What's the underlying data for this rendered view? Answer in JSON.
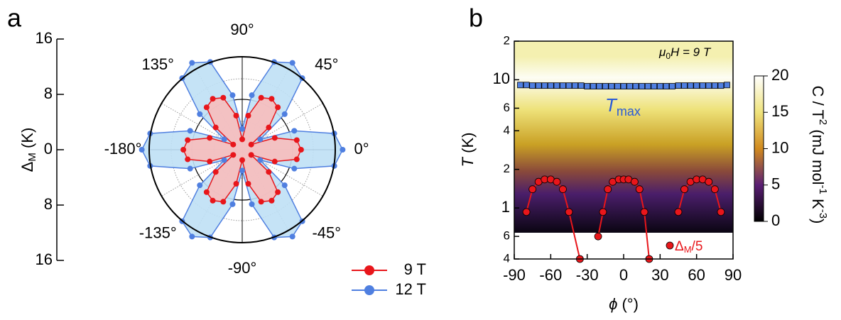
{
  "panel_labels": [
    "a",
    "b"
  ],
  "chart_data": [
    {
      "type": "polar",
      "ylabel": [
        "Δ",
        "M",
        " (K)"
      ],
      "ylim": [
        -16,
        16
      ],
      "yticks": [
        16,
        8,
        0,
        {
          "value": -8,
          "label": "8"
        },
        {
          "value": -16,
          "label": "16"
        }
      ],
      "thetaticks": [
        {
          "value": 0,
          "label": "0°"
        },
        {
          "value": 45,
          "label": "45°"
        },
        {
          "value": 90,
          "label": "90°"
        },
        {
          "value": 135,
          "label": "135°"
        },
        {
          "value": 180,
          "label": "-180°"
        },
        {
          "value": 225,
          "label": "-135°"
        },
        {
          "value": 270,
          "label": "-90°"
        },
        {
          "value": 315,
          "label": "-45°"
        }
      ],
      "theta": [
        0,
        10,
        20,
        30,
        40,
        50,
        60,
        70,
        80,
        90,
        100,
        110,
        120,
        130,
        140,
        150,
        160,
        170,
        180,
        190,
        200,
        210,
        220,
        230,
        240,
        250,
        260,
        270,
        280,
        290,
        300,
        310,
        320,
        330,
        340,
        350
      ],
      "series": [
        {
          "name": "12 T",
          "color": "#4f7fe0",
          "fill": "#bfe0f5",
          "values": [
            14.5,
            13.5,
            8,
            3,
            8,
            13.5,
            14.5,
            13.5,
            8,
            3,
            8,
            13.5,
            14.5,
            13.5,
            8,
            3,
            8,
            13.5,
            14.5,
            13.5,
            8,
            3,
            8,
            13.5,
            14.5,
            13.5,
            8,
            3,
            8,
            13.5,
            14.5,
            13.5,
            8,
            3,
            8,
            13.5
          ]
        },
        {
          "name": "9 T",
          "color": "#e8161b",
          "fill": "#f7bcbc",
          "values": [
            8.5,
            8,
            5,
            1.5,
            5,
            8,
            8.5,
            8,
            5,
            1.5,
            5,
            8,
            8.5,
            8,
            5,
            1.5,
            5,
            8,
            8.5,
            8,
            5,
            1.5,
            5,
            8,
            8.5,
            8,
            5,
            1.5,
            5,
            8,
            8.5,
            8,
            5,
            1.5,
            5,
            8
          ]
        }
      ],
      "legend": "lower right"
    },
    {
      "type": "scatter-heatmap",
      "xlabel": [
        "ϕ",
        " (°)"
      ],
      "ylabel": [
        "T",
        " (K)"
      ],
      "xlim": [
        -90,
        90
      ],
      "xticks": [
        -90,
        -60,
        -30,
        0,
        30,
        60,
        90
      ],
      "ylim": [
        0.4,
        20
      ],
      "log_y": true,
      "yticks": [
        {
          "value": 0.4,
          "label": "4"
        },
        {
          "value": 0.6,
          "label": "6"
        },
        1,
        2,
        4,
        6,
        10,
        {
          "value": 20,
          "label": "2"
        }
      ],
      "annotation": [
        "μ",
        "0",
        "H = 9 T"
      ],
      "colorbar": {
        "label": [
          "C / T",
          "2",
          " (mJ  mol",
          "-1",
          " K",
          "-3",
          ")"
        ],
        "clim": [
          0,
          20
        ],
        "ticks": [
          0,
          5,
          10,
          15,
          20
        ]
      },
      "series": [
        {
          "label": [
            "T",
            "max"
          ],
          "color": "#4f7fe0",
          "marker": "square",
          "x": [
            -85,
            -80,
            -75,
            -70,
            -65,
            -60,
            -55,
            -50,
            -45,
            -40,
            -35,
            -30,
            -25,
            -20,
            -15,
            -10,
            -5,
            0,
            5,
            10,
            15,
            20,
            25,
            30,
            35,
            40,
            45,
            50,
            55,
            60,
            65,
            70,
            75,
            80,
            85
          ],
          "values": [
            9.1,
            9.1,
            9.0,
            9.0,
            9.0,
            9.0,
            9.0,
            9.0,
            9.0,
            9.0,
            9.0,
            8.9,
            8.9,
            8.9,
            8.9,
            8.9,
            8.9,
            8.9,
            8.9,
            8.9,
            8.9,
            8.9,
            8.9,
            8.9,
            8.9,
            8.9,
            9.0,
            9.0,
            9.0,
            9.0,
            9.0,
            9.0,
            9.0,
            9.0,
            9.1
          ]
        },
        {
          "label": [
            "Δ",
            "M",
            "/5"
          ],
          "color": "#e8161b",
          "marker": "circle",
          "x": [
            -80,
            -75,
            -70,
            -65,
            -60,
            -55,
            -50,
            -45,
            -36,
            -30,
            -21,
            -17,
            -13,
            -9,
            -4,
            0,
            4,
            9,
            13,
            17,
            21,
            30,
            45,
            50,
            55,
            60,
            65,
            70,
            75,
            80
          ],
          "values": [
            0.93,
            1.4,
            1.6,
            1.67,
            1.67,
            1.6,
            1.4,
            0.93,
            0.4,
            null,
            0.6,
            0.93,
            1.4,
            1.6,
            1.67,
            1.67,
            1.67,
            1.6,
            1.4,
            0.93,
            0.4,
            null,
            0.93,
            1.4,
            1.6,
            1.67,
            1.67,
            1.6,
            1.4,
            0.93
          ]
        }
      ]
    }
  ]
}
